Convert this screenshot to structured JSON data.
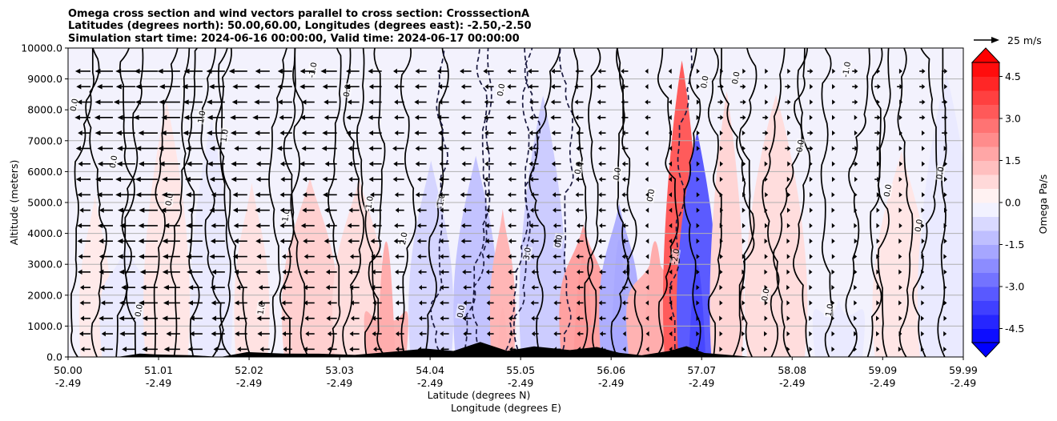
{
  "chart_data": {
    "type": "contour",
    "title_lines": [
      "Omega cross section and wind vectors parallel to cross section: CrosssectionA",
      "Latitudes (degrees north): 50.00,60.00, Longitudes (degrees east): -2.50,-2.50",
      "Simulation start time: 2024-06-16 00:00:00, Valid time: 2024-06-17 00:00:00"
    ],
    "ylabel": "Altitude (meters)",
    "xlabel_lat": "Latitude (degrees N)",
    "xlabel_lon": "Longitude (degrees E)",
    "ylim": [
      0,
      10000
    ],
    "y_ticks": [
      "0.0",
      "1000.0",
      "2000.0",
      "3000.0",
      "4000.0",
      "5000.0",
      "6000.0",
      "7000.0",
      "8000.0",
      "9000.0",
      "10000.0"
    ],
    "x_range": [
      50.0,
      59.99
    ],
    "x_ticks": [
      {
        "lat": "50.00",
        "lon": "-2.49",
        "value": 50.0
      },
      {
        "lat": "51.01",
        "lon": "-2.49",
        "value": 51.01
      },
      {
        "lat": "52.02",
        "lon": "-2.49",
        "value": 52.02
      },
      {
        "lat": "53.03",
        "lon": "-2.49",
        "value": 53.03
      },
      {
        "lat": "54.04",
        "lon": "-2.49",
        "value": 54.04
      },
      {
        "lat": "55.05",
        "lon": "-2.49",
        "value": 55.05
      },
      {
        "lat": "56.06",
        "lon": "-2.49",
        "value": 56.06
      },
      {
        "lat": "57.07",
        "lon": "-2.49",
        "value": 57.07
      },
      {
        "lat": "58.08",
        "lon": "-2.49",
        "value": 58.08
      },
      {
        "lat": "59.09",
        "lon": "-2.49",
        "value": 59.09
      },
      {
        "lat": "59.99",
        "lon": "-2.49",
        "value": 59.99
      }
    ],
    "colorbar": {
      "label": "Omega Pa/s",
      "range": [
        -5,
        5
      ],
      "levels": 20,
      "ticks": [
        "-4.5",
        "-3.0",
        "-1.5",
        "0.0",
        "1.5",
        "3.0",
        "4.5"
      ],
      "tick_values": [
        -4.5,
        -3.0,
        -1.5,
        0.0,
        1.5,
        3.0,
        4.5
      ]
    },
    "quiver_key": {
      "label": "25 m/s"
    },
    "omega_bands": [
      {
        "lat": 50.3,
        "omega": 0.3
      },
      {
        "lat": 50.65,
        "omega": -0.3
      },
      {
        "lat": 51.1,
        "omega": 0.4
      },
      {
        "lat": 51.6,
        "omega": -0.3
      },
      {
        "lat": 52.05,
        "omega": 0.5
      },
      {
        "lat": 52.7,
        "omega": 0.9
      },
      {
        "lat": 53.25,
        "omega": 0.6
      },
      {
        "lat": 53.55,
        "omega": 1.6
      },
      {
        "lat": 54.05,
        "omega": -0.8
      },
      {
        "lat": 54.55,
        "omega": -1.2
      },
      {
        "lat": 54.85,
        "omega": 1.5
      },
      {
        "lat": 55.3,
        "omega": -1.0
      },
      {
        "lat": 55.75,
        "omega": 2.0
      },
      {
        "lat": 56.15,
        "omega": -1.7
      },
      {
        "lat": 56.55,
        "omega": 1.6
      },
      {
        "lat": 56.85,
        "omega": 3.6
      },
      {
        "lat": 57.02,
        "omega": -3.6
      },
      {
        "lat": 57.35,
        "omega": 0.8
      },
      {
        "lat": 57.9,
        "omega": 0.6
      },
      {
        "lat": 58.6,
        "omega": -0.3
      },
      {
        "lat": 59.3,
        "omega": 0.4
      },
      {
        "lat": 59.8,
        "omega": -0.3
      }
    ],
    "contour_labels": [
      "0.0",
      "0.0",
      "0.0",
      "0.0",
      "1.0",
      "1.0",
      "1.0",
      "-1.0",
      "-1.0",
      "0.0",
      "-1.0",
      "2.0",
      "-1.0",
      "0.0",
      "0.0",
      "3.0",
      "0.0",
      "0.0",
      "0.0",
      "0.0",
      "-2.0",
      "0.0",
      "0.0",
      "0.0",
      "0.0",
      "1.0",
      "-1.0",
      "0.0",
      "0.0",
      "0.0"
    ],
    "wind_columns": [
      {
        "lat": 50.0,
        "u": -6
      },
      {
        "lat": 50.25,
        "u": -8
      },
      {
        "lat": 50.5,
        "u": -10
      },
      {
        "lat": 50.75,
        "u": -12
      },
      {
        "lat": 51.0,
        "u": -14
      },
      {
        "lat": 51.25,
        "u": -13
      },
      {
        "lat": 51.5,
        "u": -11
      },
      {
        "lat": 51.75,
        "u": -10
      },
      {
        "lat": 52.0,
        "u": -9
      },
      {
        "lat": 52.25,
        "u": -9
      },
      {
        "lat": 52.5,
        "u": -8
      },
      {
        "lat": 52.75,
        "u": -8
      },
      {
        "lat": 53.0,
        "u": -8
      },
      {
        "lat": 53.25,
        "u": -7
      },
      {
        "lat": 53.5,
        "u": -7
      },
      {
        "lat": 53.75,
        "u": -6
      },
      {
        "lat": 54.0,
        "u": -6
      },
      {
        "lat": 54.25,
        "u": -6
      },
      {
        "lat": 54.5,
        "u": -6
      },
      {
        "lat": 54.75,
        "u": -5
      },
      {
        "lat": 55.0,
        "u": -5
      },
      {
        "lat": 55.25,
        "u": -5
      },
      {
        "lat": 55.5,
        "u": -5
      },
      {
        "lat": 55.75,
        "u": -4
      },
      {
        "lat": 56.0,
        "u": -4
      },
      {
        "lat": 56.25,
        "u": -3
      },
      {
        "lat": 56.5,
        "u": -2
      },
      {
        "lat": 56.75,
        "u": -1
      },
      {
        "lat": 57.0,
        "u": 1
      },
      {
        "lat": 57.25,
        "u": 2
      },
      {
        "lat": 57.5,
        "u": 2
      },
      {
        "lat": 57.75,
        "u": 2
      },
      {
        "lat": 58.0,
        "u": 2
      },
      {
        "lat": 58.25,
        "u": 2
      },
      {
        "lat": 58.5,
        "u": 2
      },
      {
        "lat": 58.75,
        "u": 2
      },
      {
        "lat": 59.0,
        "u": 2
      },
      {
        "lat": 59.25,
        "u": 2
      },
      {
        "lat": 59.5,
        "u": 2
      },
      {
        "lat": 59.75,
        "u": 2
      }
    ],
    "terrain": [
      {
        "lat": 50.0,
        "h": 0
      },
      {
        "lat": 50.55,
        "h": 0
      },
      {
        "lat": 50.8,
        "h": 90
      },
      {
        "lat": 51.0,
        "h": 60
      },
      {
        "lat": 51.4,
        "h": 30
      },
      {
        "lat": 51.7,
        "h": 0
      },
      {
        "lat": 52.0,
        "h": 150
      },
      {
        "lat": 52.4,
        "h": 80
      },
      {
        "lat": 52.8,
        "h": 120
      },
      {
        "lat": 53.2,
        "h": 40
      },
      {
        "lat": 53.6,
        "h": 160
      },
      {
        "lat": 54.0,
        "h": 250
      },
      {
        "lat": 54.3,
        "h": 180
      },
      {
        "lat": 54.6,
        "h": 500
      },
      {
        "lat": 54.9,
        "h": 200
      },
      {
        "lat": 55.2,
        "h": 320
      },
      {
        "lat": 55.6,
        "h": 220
      },
      {
        "lat": 55.9,
        "h": 300
      },
      {
        "lat": 56.15,
        "h": 120
      },
      {
        "lat": 56.4,
        "h": 60
      },
      {
        "lat": 56.7,
        "h": 200
      },
      {
        "lat": 56.9,
        "h": 350
      },
      {
        "lat": 57.1,
        "h": 150
      },
      {
        "lat": 57.35,
        "h": 80
      },
      {
        "lat": 57.6,
        "h": 30
      },
      {
        "lat": 57.8,
        "h": 0
      },
      {
        "lat": 59.99,
        "h": 0
      }
    ]
  }
}
